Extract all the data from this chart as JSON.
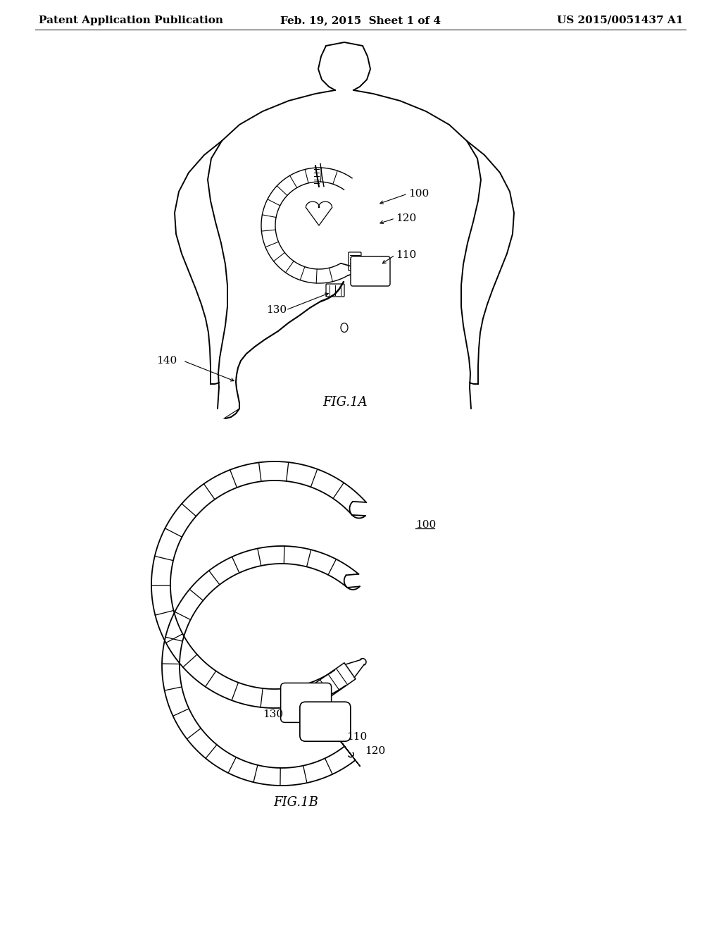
{
  "background_color": "#ffffff",
  "header_left": "Patent Application Publication",
  "header_center": "Feb. 19, 2015  Sheet 1 of 4",
  "header_right": "US 2015/0051437 A1",
  "fig1a_label": "FIG.1A",
  "fig1b_label": "FIG.1B",
  "line_color": "#000000",
  "line_width": 1.4,
  "header_fontsize": 11,
  "label_fontsize": 11,
  "fig_label_fontsize": 13
}
